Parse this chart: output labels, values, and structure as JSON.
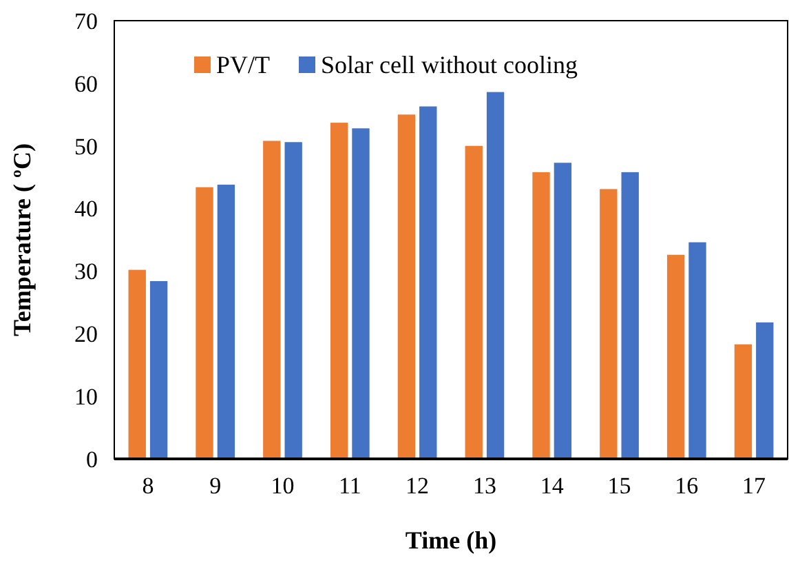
{
  "chart_data": {
    "type": "bar",
    "xlabel": "Time (h)",
    "ylabel": "Temperature ( ºC)",
    "categories": [
      "8",
      "9",
      "10",
      "11",
      "12",
      "13",
      "14",
      "15",
      "16",
      "17"
    ],
    "series": [
      {
        "name": "PV/T",
        "color": "#ed7d31",
        "values": [
          30.2,
          43.4,
          50.8,
          53.7,
          55.0,
          50.0,
          45.8,
          43.1,
          32.6,
          18.3
        ]
      },
      {
        "name": "Solar cell without cooling",
        "color": "#4472c4",
        "values": [
          28.4,
          43.8,
          50.6,
          52.8,
          56.3,
          58.6,
          47.3,
          45.8,
          34.6,
          21.8
        ]
      }
    ],
    "ylim": [
      0,
      70
    ],
    "yticks": [
      0,
      10,
      20,
      30,
      40,
      50,
      60,
      70
    ],
    "legend": "top left"
  }
}
